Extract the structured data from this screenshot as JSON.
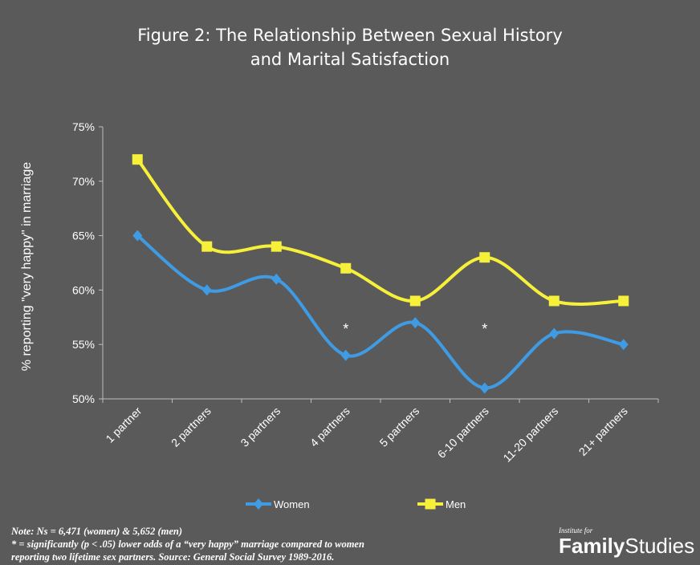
{
  "title_lines": [
    "Figure  2: The Relationship Between Sexual History",
    "and Marital Satisfaction"
  ],
  "note_lines": [
    "Note: Ns = 6,471 (women) & 5,652 (men)",
    "* = significantly (p < .05) lower odds of a “very happy” marriage compared to women",
    "reporting two lifetime sex partners.  Source: General Social Survey 1989-2016."
  ],
  "brand": {
    "small": "Institute for",
    "bold": "Family",
    "rest": "Studies"
  },
  "colors": {
    "background": "#5a5a5a",
    "women": "#3f9be3",
    "men": "#f7f03a",
    "axis": "#bfbfbf",
    "text": "#ffffff"
  },
  "chart_data": {
    "type": "line",
    "title": "Figure  2: The Relationship Between Sexual History and Marital Satisfaction",
    "ylabel": "% reporting \"very happy\" in marriage",
    "xlabel": "",
    "categories": [
      "1 partner",
      "2 partners",
      "3 partners",
      "4 partners",
      "5 partners",
      "6-10 partners",
      "11-20 partners",
      "21+ partners"
    ],
    "ylim": [
      50,
      75
    ],
    "yticks": [
      50,
      55,
      60,
      65,
      70,
      75
    ],
    "ytick_labels": [
      "50%",
      "55%",
      "60%",
      "65%",
      "70%",
      "75%"
    ],
    "grid": false,
    "legend_position": "bottom",
    "series": [
      {
        "name": "Women",
        "marker": "diamond",
        "color": "#3f9be3",
        "values": [
          65,
          60,
          61,
          54,
          57,
          51,
          56,
          55
        ]
      },
      {
        "name": "Men",
        "marker": "square",
        "color": "#f7f03a",
        "values": [
          72,
          64,
          64,
          62,
          59,
          63,
          59,
          59
        ]
      }
    ],
    "annotations": [
      {
        "text": "*",
        "category": "4 partners",
        "y": 56.7
      },
      {
        "text": "*",
        "category": "6-10 partners",
        "y": 56.7
      }
    ]
  }
}
